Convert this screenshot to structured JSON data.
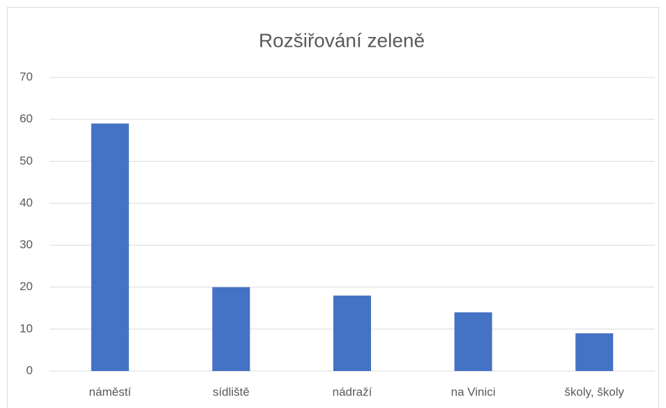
{
  "chart_data": {
    "type": "bar",
    "title": "Rozšiřování zeleně",
    "categories": [
      "náměstí",
      "sídliště",
      "nádraží",
      "na Vinici",
      "školy, školy"
    ],
    "values": [
      59,
      20,
      18,
      14,
      9
    ],
    "color": "#4472c4",
    "ylim": [
      0,
      70
    ],
    "yticks": [
      0,
      10,
      20,
      30,
      40,
      50,
      60,
      70
    ],
    "grid": true
  }
}
